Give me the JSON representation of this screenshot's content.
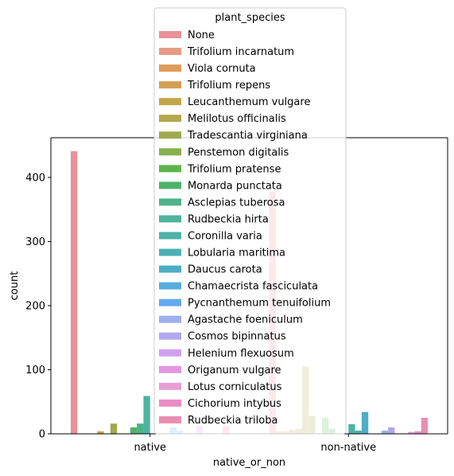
{
  "chart_data": {
    "type": "bar",
    "xlabel": "native_or_non",
    "ylabel": "count",
    "categories": [
      "native",
      "non-native"
    ],
    "ylim": [
      0,
      462
    ],
    "yticks": [
      0,
      100,
      200,
      300,
      400
    ],
    "grid": false,
    "legend": {
      "title": "plant_species",
      "placement": "upper-center"
    },
    "series": [
      {
        "name": "None",
        "color": "#e8919b",
        "values": [
          441,
          378
        ]
      },
      {
        "name": "Trifolium incarnatum",
        "color": "#e69b87",
        "values": [
          0,
          4
        ]
      },
      {
        "name": "Viola cornuta",
        "color": "#e09b5a",
        "values": [
          0,
          4
        ]
      },
      {
        "name": "Trifolium repens",
        "color": "#d49f54",
        "values": [
          0,
          6
        ]
      },
      {
        "name": "Leucanthemum vulgare",
        "color": "#c5a549",
        "values": [
          4,
          8
        ]
      },
      {
        "name": "Melilotus officinalis",
        "color": "#b4a84a",
        "values": [
          0,
          105
        ]
      },
      {
        "name": "Tradescantia virginiana",
        "color": "#a0ab4e",
        "values": [
          16,
          28
        ]
      },
      {
        "name": "Penstemon digitalis",
        "color": "#87b04e",
        "values": [
          0,
          0
        ]
      },
      {
        "name": "Trifolium pratense",
        "color": "#5db44a",
        "values": [
          0,
          25
        ]
      },
      {
        "name": "Monarda punctata",
        "color": "#4db268",
        "values": [
          10,
          8
        ]
      },
      {
        "name": "Asclepias tuberosa",
        "color": "#4eb38a",
        "values": [
          16,
          0
        ]
      },
      {
        "name": "Rudbeckia hirta",
        "color": "#4fb39f",
        "values": [
          59,
          0
        ]
      },
      {
        "name": "Coronilla varia",
        "color": "#4ab3a8",
        "values": [
          0,
          15
        ]
      },
      {
        "name": "Lobularia maritima",
        "color": "#4ab2b4",
        "values": [
          0,
          5
        ]
      },
      {
        "name": "Daucus carota",
        "color": "#4eaec7",
        "values": [
          0,
          34
        ]
      },
      {
        "name": "Chamaecrista fasciculata",
        "color": "#55aede",
        "values": [
          10,
          0
        ]
      },
      {
        "name": "Pycnanthemum tenuifolium",
        "color": "#62aaf0",
        "values": [
          5,
          0
        ]
      },
      {
        "name": "Agastache foeniculum",
        "color": "#9dafee",
        "values": [
          0,
          5
        ]
      },
      {
        "name": "Cosmos bipinnatus",
        "color": "#b1a8ee",
        "values": [
          0,
          10
        ]
      },
      {
        "name": "Helenium flexuosum",
        "color": "#cfa0ef",
        "values": [
          12,
          0
        ]
      },
      {
        "name": "Origanum vulgare",
        "color": "#e596e2",
        "values": [
          0,
          0
        ]
      },
      {
        "name": "Lotus corniculatus",
        "color": "#e89ed5",
        "values": [
          0,
          3
        ]
      },
      {
        "name": "Cichorium intybus",
        "color": "#e98ec5",
        "values": [
          0,
          4
        ]
      },
      {
        "name": "Rudbeckia triloba",
        "color": "#e88fb0",
        "values": [
          12,
          25
        ]
      }
    ]
  }
}
